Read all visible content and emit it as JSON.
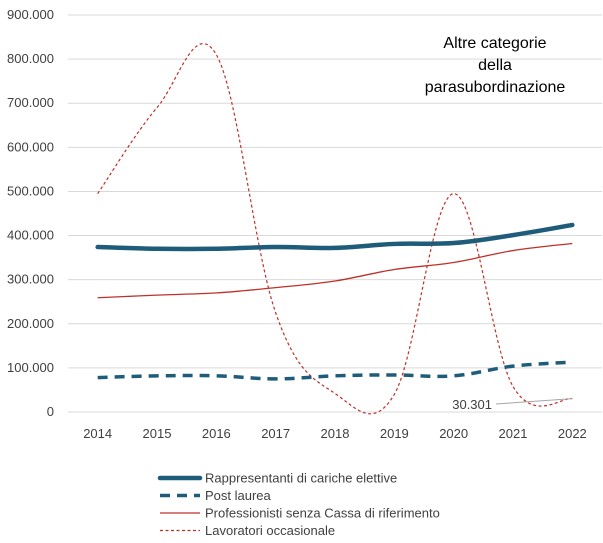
{
  "chart_data": {
    "type": "line",
    "title": "",
    "xlabel": "",
    "ylabel": "",
    "categories": [
      "2014",
      "2015",
      "2016",
      "2017",
      "2018",
      "2019",
      "2020",
      "2021",
      "2022"
    ],
    "ylim": [
      0,
      900000
    ],
    "yticks": [
      {
        "value": 0,
        "label": "0"
      },
      {
        "value": 100000,
        "label": "100.000"
      },
      {
        "value": 200000,
        "label": "200.000"
      },
      {
        "value": 300000,
        "label": "300.000"
      },
      {
        "value": 400000,
        "label": "400.000"
      },
      {
        "value": 500000,
        "label": "500.000"
      },
      {
        "value": 600000,
        "label": "600.000"
      },
      {
        "value": 700000,
        "label": "700.000"
      },
      {
        "value": 800000,
        "label": "800.000"
      },
      {
        "value": 900000,
        "label": "900.000"
      }
    ],
    "grid": "horizontal",
    "legend_position": "bottom",
    "annotation": {
      "title_lines": [
        "Altre categorie",
        "della",
        "parasubordinazione"
      ]
    },
    "data_label": {
      "text": "30.301",
      "series_index": 3,
      "point_index": 8
    },
    "series": [
      {
        "name": "Rappresentanti di cariche elettive",
        "color": "#1f5c7a",
        "style": "solid-thick",
        "values": [
          374000,
          370000,
          370000,
          374000,
          372000,
          381000,
          383000,
          401000,
          424000
        ]
      },
      {
        "name": "Post laurea",
        "color": "#1f5c7a",
        "style": "dashed-thick",
        "values": [
          78000,
          82000,
          82000,
          75000,
          82000,
          84000,
          82000,
          104000,
          113000
        ]
      },
      {
        "name": "Professionisti senza Cassa di riferimento",
        "color": "#c0302a",
        "style": "solid-thin",
        "values": [
          259000,
          265000,
          270000,
          282000,
          297000,
          323000,
          339000,
          366000,
          382000
        ]
      },
      {
        "name": "Lavoratori occasionale",
        "color": "#c0302a",
        "style": "dotted-thin",
        "values": [
          495000,
          690000,
          810000,
          225000,
          42000,
          40000,
          495000,
          58000,
          30301
        ]
      }
    ]
  }
}
